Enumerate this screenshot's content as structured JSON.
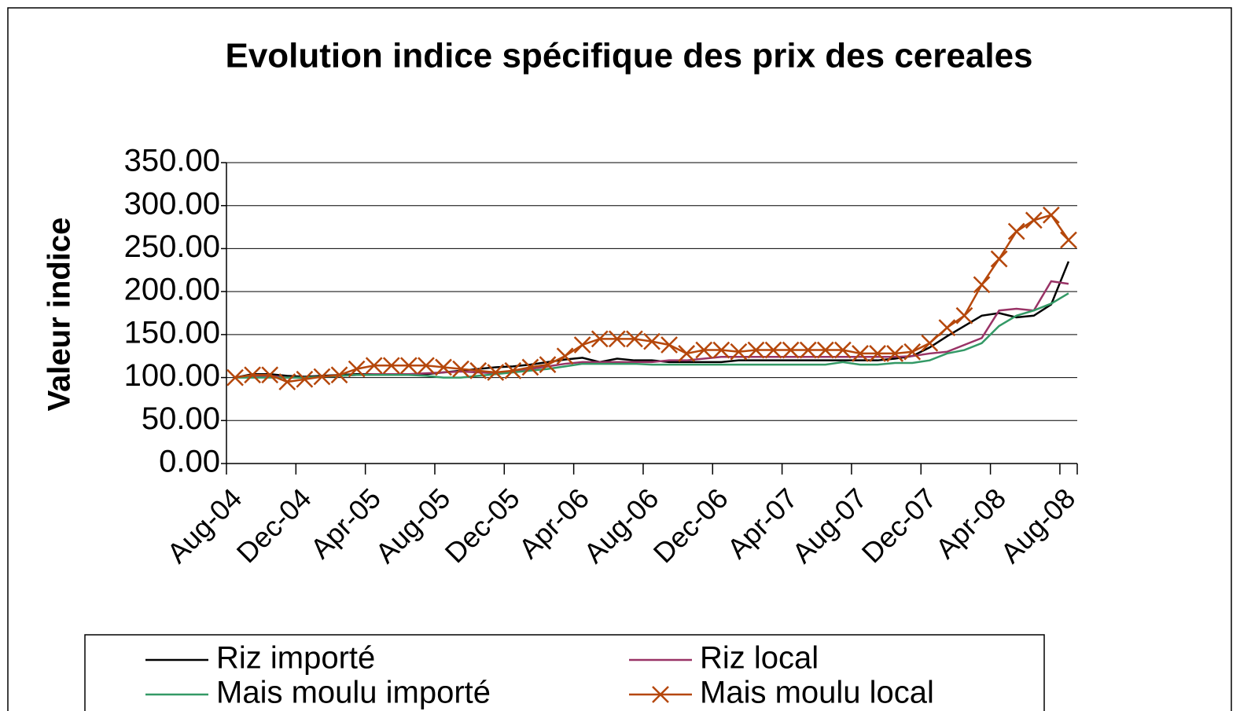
{
  "chart_data": {
    "type": "line",
    "title": "Evolution indice spécifique des prix des cereales",
    "y_label": "Valeur indice",
    "categories": [
      "Aug-04",
      null,
      null,
      null,
      "Dec-04",
      null,
      null,
      null,
      "Apr-05",
      null,
      null,
      null,
      "Aug-05",
      null,
      null,
      null,
      "Dec-05",
      null,
      null,
      null,
      "Apr-06",
      null,
      null,
      null,
      "Aug-06",
      null,
      null,
      null,
      "Dec-06",
      null,
      null,
      null,
      "Apr-07",
      null,
      null,
      null,
      "Aug-07",
      null,
      null,
      null,
      "Dec-07",
      null,
      null,
      null,
      "Apr-08",
      null,
      null,
      null,
      "Aug-08"
    ],
    "series": [
      {
        "name": "Riz importé",
        "color": "#000000",
        "values": [
          100,
          104,
          104,
          102,
          101,
          102,
          103,
          104,
          104,
          104,
          104,
          104,
          106,
          108,
          110,
          112,
          113,
          115,
          118,
          121,
          123,
          118,
          122,
          120,
          120,
          118,
          118,
          118,
          118,
          120,
          120,
          120,
          120,
          120,
          120,
          120,
          120,
          120,
          122,
          125,
          135,
          148,
          160,
          172,
          175,
          170,
          172,
          185,
          235
        ]
      },
      {
        "name": "Riz local",
        "color": "#993366",
        "values": [
          100,
          102,
          102,
          100,
          100,
          101,
          102,
          103,
          104,
          104,
          104,
          105,
          106,
          107,
          106,
          105,
          107,
          110,
          113,
          116,
          118,
          118,
          118,
          118,
          118,
          120,
          120,
          122,
          124,
          124,
          124,
          124,
          124,
          124,
          124,
          124,
          124,
          124,
          124,
          125,
          128,
          130,
          138,
          146,
          178,
          180,
          178,
          212,
          209
        ]
      },
      {
        "name": "Mais moulu importé",
        "color": "#339966",
        "values": [
          100,
          100,
          100,
          100,
          100,
          101,
          102,
          103,
          103,
          103,
          103,
          102,
          100,
          100,
          102,
          104,
          106,
          108,
          110,
          113,
          116,
          116,
          116,
          116,
          115,
          115,
          115,
          115,
          115,
          115,
          115,
          115,
          115,
          115,
          115,
          118,
          115,
          115,
          117,
          117,
          120,
          128,
          132,
          140,
          160,
          172,
          178,
          186,
          198
        ]
      },
      {
        "name": "Mais moulu local",
        "color": "#b5470b",
        "marker": "x",
        "values": [
          100,
          103,
          103,
          95,
          98,
          101,
          103,
          110,
          114,
          114,
          114,
          114,
          112,
          110,
          108,
          106,
          108,
          112,
          115,
          125,
          138,
          145,
          145,
          145,
          142,
          138,
          128,
          132,
          132,
          130,
          132,
          132,
          132,
          132,
          132,
          132,
          128,
          128,
          128,
          130,
          140,
          158,
          172,
          208,
          238,
          270,
          283,
          289,
          260
        ]
      }
    ],
    "ylim": [
      0,
      350
    ],
    "yticks": [
      {
        "value": 0,
        "label": "0.00"
      },
      {
        "value": 50,
        "label": "50.00"
      },
      {
        "value": 100,
        "label": "100.00"
      },
      {
        "value": 150,
        "label": "150.00"
      },
      {
        "value": 200,
        "label": "200.00"
      },
      {
        "value": 250,
        "label": "250.00"
      },
      {
        "value": 300,
        "label": "300.00"
      },
      {
        "value": 350,
        "label": "350.00"
      }
    ],
    "grid": true,
    "legend": "bottom"
  }
}
